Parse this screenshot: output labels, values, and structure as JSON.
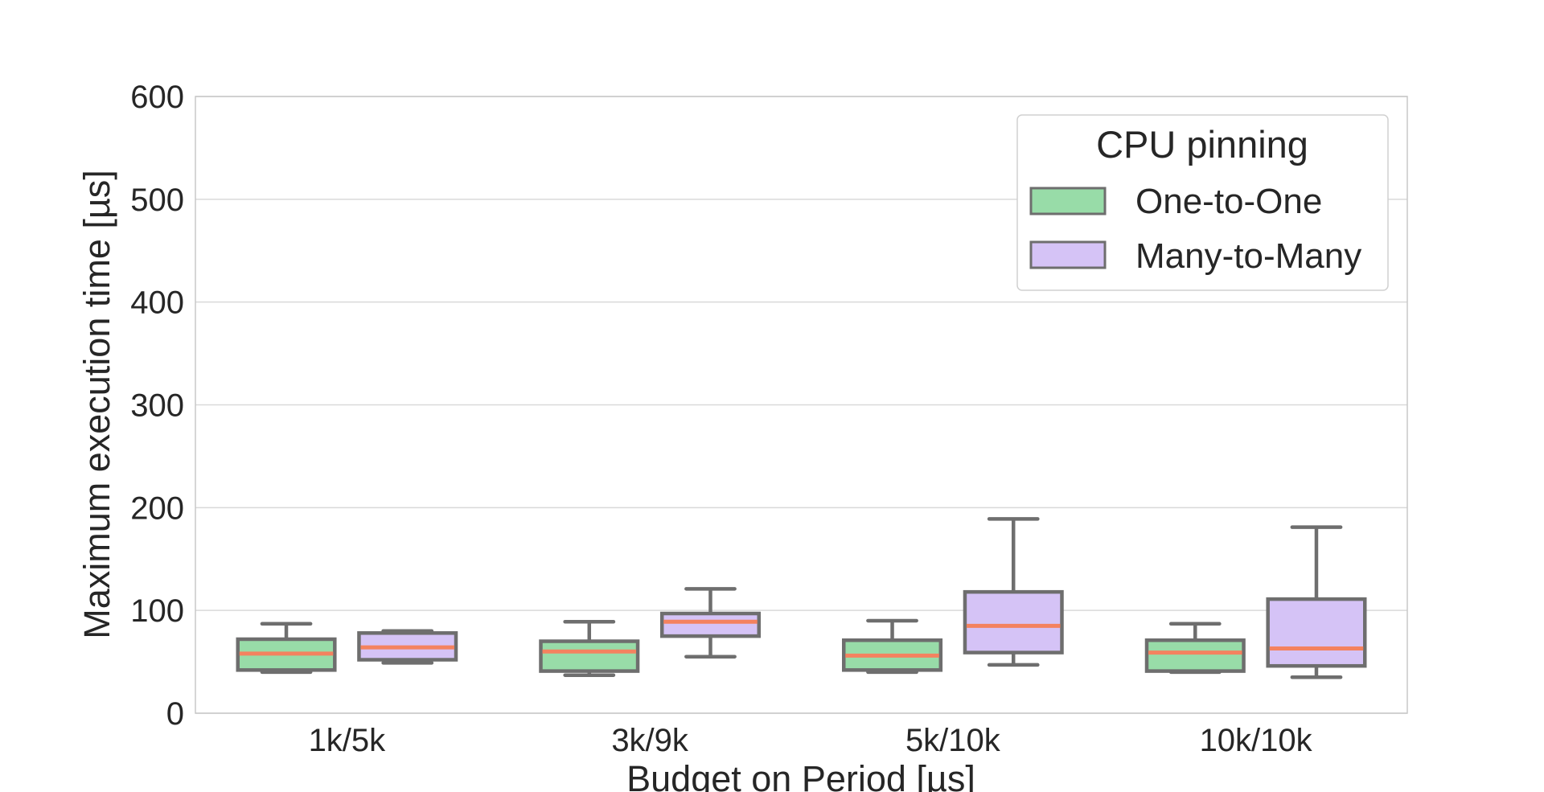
{
  "chart_data": {
    "type": "box",
    "xlabel": "Budget on Period [µs]",
    "ylabel": "Maximum execution time [µs]",
    "ylim": [
      0,
      600
    ],
    "yticks": [
      0,
      100,
      200,
      300,
      400,
      500,
      600
    ],
    "grid": true,
    "legend": {
      "title": "CPU pinning",
      "position": "top-right"
    },
    "categories": [
      "1k/5k",
      "3k/9k",
      "5k/10k",
      "10k/10k"
    ],
    "series": [
      {
        "name": "One-to-One",
        "color": "#98dca8",
        "boxes": [
          {
            "whislo": 40,
            "q1": 42,
            "med": 58,
            "q3": 72,
            "whishi": 87
          },
          {
            "whislo": 37,
            "q1": 41,
            "med": 60,
            "q3": 70,
            "whishi": 89
          },
          {
            "whislo": 40,
            "q1": 42,
            "med": 56,
            "q3": 71,
            "whishi": 90
          },
          {
            "whislo": 40,
            "q1": 41,
            "med": 59,
            "q3": 71,
            "whishi": 87
          }
        ]
      },
      {
        "name": "Many-to-Many",
        "color": "#d5c3f6",
        "boxes": [
          {
            "whislo": 49,
            "q1": 52,
            "med": 64,
            "q3": 78,
            "whishi": 80
          },
          {
            "whislo": 55,
            "q1": 75,
            "med": 89,
            "q3": 97,
            "whishi": 121
          },
          {
            "whislo": 47,
            "q1": 59,
            "med": 85,
            "q3": 118,
            "whishi": 189
          },
          {
            "whislo": 35,
            "q1": 46,
            "med": 63,
            "q3": 111,
            "whishi": 181
          }
        ]
      }
    ],
    "box_edge_color": "#6e6e6e",
    "median_color": "#f4825f",
    "grid_color": "#d9d9d9"
  }
}
